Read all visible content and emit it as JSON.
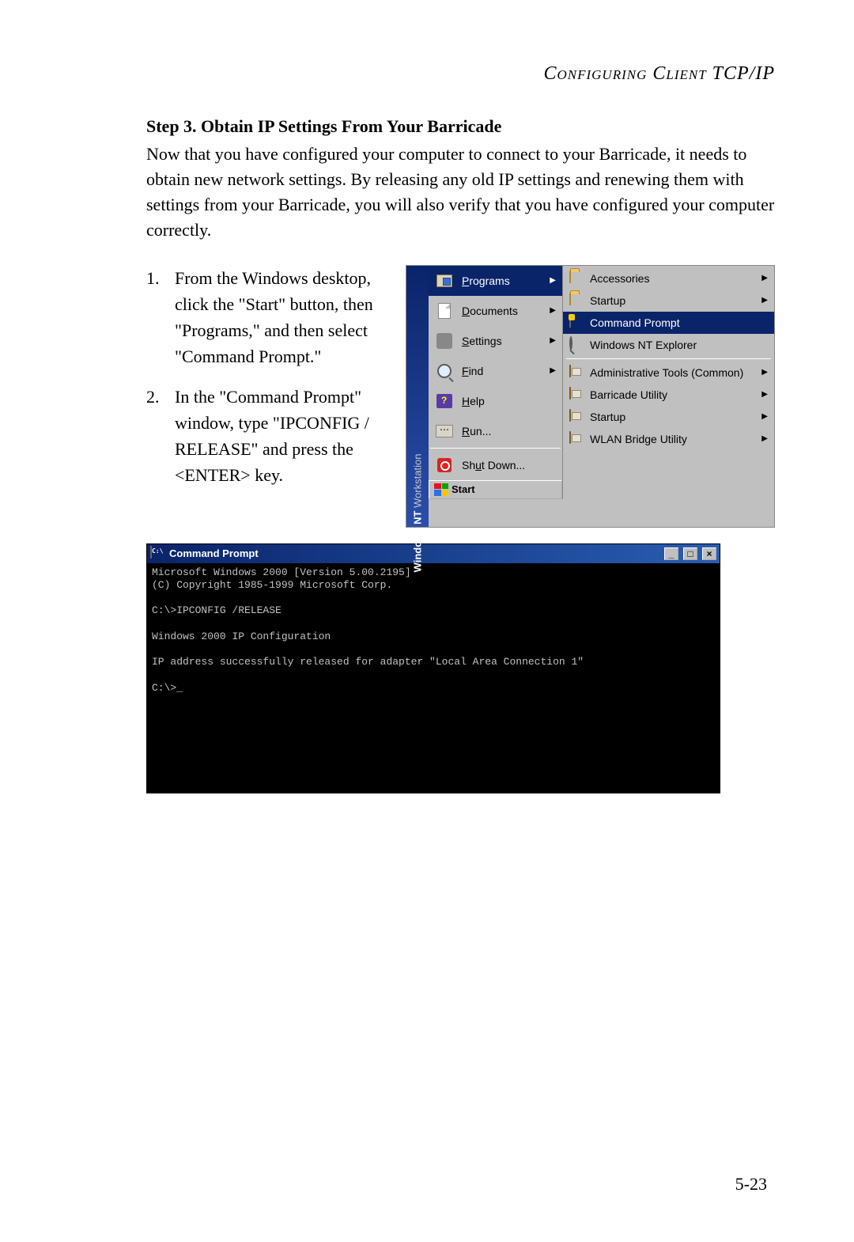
{
  "header": "Configuring Client TCP/IP",
  "step_title": "Step 3. Obtain IP Settings From Your Barricade",
  "intro": "Now that you have configured your computer to connect to your Barricade, it needs to obtain new network settings. By releasing any old IP settings and renewing them with settings from your Barricade, you will also verify that you have configured your computer correctly.",
  "steps": [
    "From the Windows desktop, click the \"Start\" button, then \"Programs,\" and then select \"Command Prompt.\"",
    "In the \"Command Prompt\" window, type \"IPCONFIG / RELEASE\" and press the <ENTER> key."
  ],
  "startmenu": {
    "vstrip_main": "Windows NT",
    "vstrip_sub": "Workstation",
    "items": [
      {
        "label": "Programs",
        "u": "P",
        "arrow": true,
        "icon": "programs"
      },
      {
        "label": "Documents",
        "u": "D",
        "arrow": true,
        "icon": "documents"
      },
      {
        "label": "Settings",
        "u": "S",
        "arrow": true,
        "icon": "settings"
      },
      {
        "label": "Find",
        "u": "F",
        "arrow": true,
        "icon": "find"
      },
      {
        "label": "Help",
        "u": "H",
        "arrow": false,
        "icon": "help"
      },
      {
        "label": "Run...",
        "u": "R",
        "arrow": false,
        "icon": "run"
      }
    ],
    "shutdown": {
      "label": "Shut Down...",
      "u": "u"
    },
    "start_label": "Start",
    "submenu": [
      {
        "label": "Accessories",
        "arrow": true,
        "icon": "folder"
      },
      {
        "label": "Startup",
        "arrow": true,
        "icon": "folder"
      },
      {
        "label": "Command Prompt",
        "arrow": false,
        "icon": "cmd",
        "hi": true
      },
      {
        "label": "Windows NT Explorer",
        "arrow": false,
        "icon": "explorer"
      },
      {
        "sep": true
      },
      {
        "label": "Administrative Tools (Common)",
        "arrow": true,
        "icon": "group"
      },
      {
        "label": "Barricade Utility",
        "arrow": true,
        "icon": "group"
      },
      {
        "label": "Startup",
        "arrow": true,
        "icon": "group"
      },
      {
        "label": "WLAN Bridge Utility",
        "arrow": true,
        "icon": "group"
      }
    ]
  },
  "cmd": {
    "title": "Command Prompt",
    "lines": [
      "Microsoft Windows 2000 [Version 5.00.2195]",
      "(C) Copyright 1985-1999 Microsoft Corp.",
      "",
      "C:\\>IPCONFIG /RELEASE",
      "",
      "Windows 2000 IP Configuration",
      "",
      "IP address successfully released for adapter \"Local Area Connection 1\"",
      "",
      "C:\\>_"
    ]
  },
  "page_number": "5-23",
  "colors": {
    "highlight_bg": "#0a246a",
    "highlight_fg": "#ffffff",
    "menu_bg": "#c0c0c0",
    "cmd_bg": "#000000",
    "cmd_fg": "#c0c0c0"
  }
}
